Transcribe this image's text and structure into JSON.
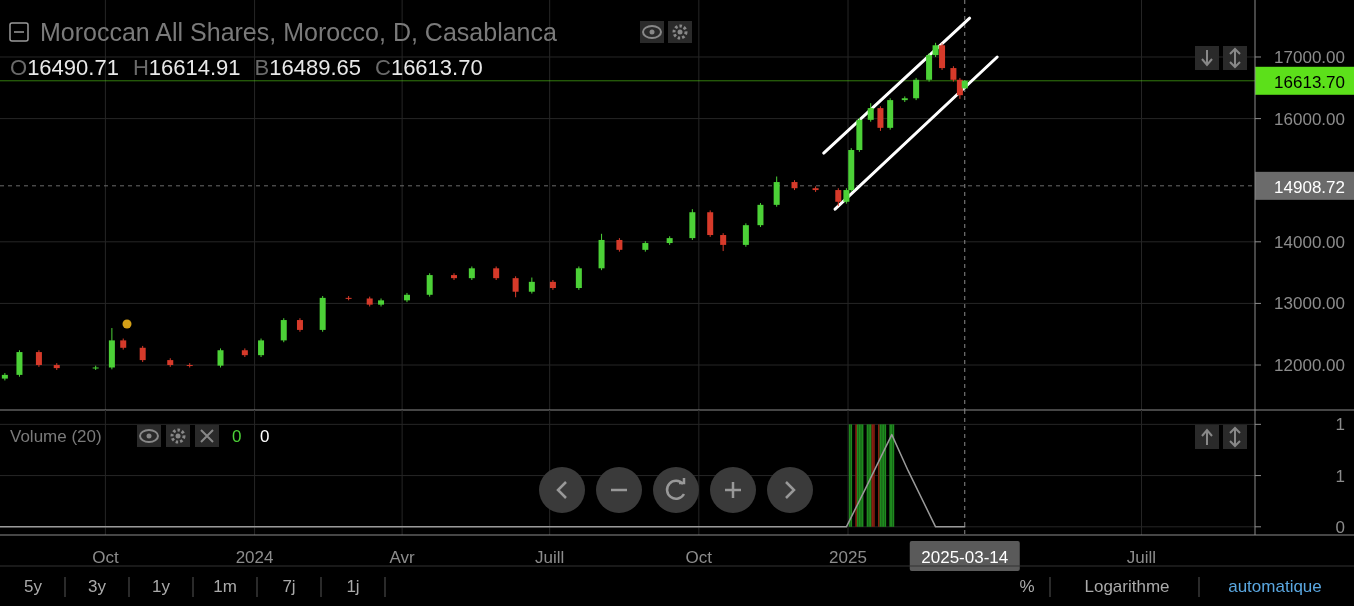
{
  "chart_data": [
    {
      "type": "candlestick",
      "title": "Moroccan All Shares, Morocco, D, Casablanca",
      "subtitle": "O16490.71 H16614.91 B16489.65 C16613.70",
      "grid": true,
      "tick_labels": "y",
      "xlim": [
        "2023-07-28",
        "2025-09-09"
      ],
      "ylim": [
        11270,
        17925
      ],
      "xticks": [
        {
          "value": "2023-10-01",
          "label": null
        },
        {
          "value": "2024-01-01",
          "label": null
        },
        {
          "value": "2024-04-01",
          "label": null
        },
        {
          "value": "2024-07-01",
          "label": null
        },
        {
          "value": "2024-10-01",
          "label": null
        },
        {
          "value": "2025-01-01",
          "label": null
        },
        {
          "value": "2025-07-01",
          "label": null
        }
      ],
      "yticks": [
        {
          "value": 12000,
          "label": "12000.00"
        },
        {
          "value": 13000,
          "label": "13000.00"
        },
        {
          "value": 14000,
          "label": "14000.00"
        },
        {
          "value": 16000,
          "label": "16000.00"
        },
        {
          "value": 17000,
          "label": "17000.00"
        }
      ],
      "x": [
        "2023-07-31",
        "2023-08-09",
        "2023-08-21",
        "2023-09-01",
        "2023-09-25",
        "2023-10-05",
        "2023-10-12",
        "2023-10-24",
        "2023-11-10",
        "2023-11-22",
        "2023-12-11",
        "2023-12-26",
        "2024-01-05",
        "2024-01-19",
        "2024-01-29",
        "2024-02-12",
        "2024-02-28",
        "2024-03-12",
        "2024-03-19",
        "2024-04-04",
        "2024-04-18",
        "2024-05-03",
        "2024-05-14",
        "2024-05-29",
        "2024-06-10",
        "2024-06-20",
        "2024-07-03",
        "2024-07-19",
        "2024-08-02",
        "2024-08-13",
        "2024-08-29",
        "2024-09-13",
        "2024-09-27",
        "2024-10-08",
        "2024-10-16",
        "2024-10-30",
        "2024-11-08",
        "2024-11-18",
        "2024-11-29",
        "2024-12-12",
        "2024-12-26",
        "2024-12-31",
        "2025-01-03",
        "2025-01-08",
        "2025-01-15",
        "2025-01-21",
        "2025-01-27",
        "2025-02-05",
        "2025-02-12",
        "2025-02-20",
        "2025-02-24",
        "2025-02-28",
        "2025-03-07",
        "2025-03-11",
        "2025-03-14"
      ],
      "ohlc": [
        [
          11780,
          11870,
          11750,
          11840
        ],
        [
          11840,
          12240,
          11810,
          12210
        ],
        [
          12210,
          12240,
          11970,
          12000
        ],
        [
          12000,
          12030,
          11920,
          11950
        ],
        [
          11950,
          11990,
          11920,
          11960
        ],
        [
          11960,
          12600,
          11930,
          12400
        ],
        [
          12400,
          12430,
          12250,
          12280
        ],
        [
          12280,
          12310,
          12050,
          12080
        ],
        [
          12080,
          12110,
          11970,
          12000
        ],
        [
          12000,
          12030,
          11960,
          11990
        ],
        [
          11990,
          12270,
          11960,
          12240
        ],
        [
          12240,
          12270,
          12130,
          12160
        ],
        [
          12160,
          12430,
          12130,
          12400
        ],
        [
          12400,
          12760,
          12370,
          12730
        ],
        [
          12730,
          12760,
          12540,
          12570
        ],
        [
          12570,
          13120,
          12540,
          13090
        ],
        [
          13090,
          13120,
          13050,
          13080
        ],
        [
          13080,
          13110,
          12950,
          12980
        ],
        [
          12980,
          13080,
          12950,
          13050
        ],
        [
          13050,
          13170,
          13020,
          13140
        ],
        [
          13140,
          13490,
          13110,
          13460
        ],
        [
          13460,
          13490,
          13380,
          13410
        ],
        [
          13410,
          13600,
          13380,
          13570
        ],
        [
          13570,
          13600,
          13380,
          13410
        ],
        [
          13410,
          13440,
          13100,
          13190
        ],
        [
          13190,
          13420,
          13160,
          13350
        ],
        [
          13350,
          13380,
          13220,
          13250
        ],
        [
          13250,
          13600,
          13220,
          13570
        ],
        [
          13570,
          14130,
          13540,
          14030
        ],
        [
          14030,
          14060,
          13840,
          13870
        ],
        [
          13870,
          14010,
          13840,
          13980
        ],
        [
          13980,
          14090,
          13950,
          14060
        ],
        [
          14060,
          14530,
          14030,
          14480
        ],
        [
          14480,
          14510,
          14080,
          14110
        ],
        [
          14110,
          14140,
          13850,
          13950
        ],
        [
          13950,
          14300,
          13920,
          14270
        ],
        [
          14270,
          14630,
          14240,
          14600
        ],
        [
          14600,
          15060,
          14570,
          14970
        ],
        [
          14970,
          15000,
          14840,
          14870
        ],
        [
          14870,
          14900,
          14810,
          14840
        ],
        [
          14840,
          14870,
          14580,
          14650
        ],
        [
          14650,
          14870,
          14620,
          14840
        ],
        [
          14840,
          15520,
          14810,
          15490
        ],
        [
          15490,
          16010,
          15460,
          15980
        ],
        [
          15980,
          16250,
          15950,
          16170
        ],
        [
          16170,
          16200,
          15800,
          15850
        ],
        [
          15850,
          16330,
          15820,
          16300
        ],
        [
          16300,
          16360,
          16270,
          16330
        ],
        [
          16330,
          16660,
          16300,
          16630
        ],
        [
          16630,
          17060,
          16600,
          17030
        ],
        [
          17030,
          17230,
          17000,
          17190
        ],
        [
          17190,
          17220,
          16790,
          16820
        ],
        [
          16820,
          16850,
          16600,
          16630
        ],
        [
          16630,
          16660,
          16320,
          16380
        ],
        [
          16490.71,
          16614.91,
          16489.65,
          16613.7
        ]
      ],
      "series": [
        {
          "type": "line",
          "color": "#ffffff",
          "x": [
            "2024-12-17",
            "2025-03-17"
          ],
          "values": [
            15440,
            17630
          ]
        },
        {
          "type": "line",
          "color": "#ffffff",
          "x": [
            "2024-12-24",
            "2025-04-03"
          ],
          "values": [
            14530,
            17000
          ]
        }
      ],
      "ref_lines": [
        {
          "axis": "y",
          "value": 16613.7,
          "label": "16613.70",
          "color": "#5ce01a",
          "line_style": "solid"
        },
        {
          "axis": "y",
          "value": 14908.72,
          "label": "14908.72",
          "color": "#6b6b6b",
          "line_style": "dashed"
        },
        {
          "axis": "x",
          "value": "2025-03-14",
          "color": "#8a8a8a",
          "line_style": "dashed"
        }
      ]
    },
    {
      "type": "bar",
      "title": "Volume (20)",
      "grid": true,
      "xlim": [
        "2023-07-28",
        "2025-09-09"
      ],
      "ylim": [
        -0.08,
        1.14
      ],
      "xticks": [
        {
          "value": "2023-10-01",
          "label": "Oct"
        },
        {
          "value": "2024-01-01",
          "label": "2024"
        },
        {
          "value": "2024-04-01",
          "label": "Avr"
        },
        {
          "value": "2024-07-01",
          "label": "Juill"
        },
        {
          "value": "2024-10-01",
          "label": "Oct"
        },
        {
          "value": "2025-01-01",
          "label": "2025"
        },
        {
          "value": "2025-07-01",
          "label": "Juill"
        }
      ],
      "yticks": [
        {
          "value": 0,
          "label": "0"
        },
        {
          "value": 0.5,
          "label": "1"
        },
        {
          "value": 1,
          "label": "1"
        }
      ],
      "series": [
        {
          "type": "bar",
          "x": [
            "2025-01-02",
            "2025-01-03",
            "2025-01-06",
            "2025-01-07",
            "2025-01-08",
            "2025-01-09",
            "2025-01-10",
            "2025-01-13",
            "2025-01-14",
            "2025-01-15",
            "2025-01-16",
            "2025-01-17",
            "2025-01-20",
            "2025-01-21",
            "2025-01-22",
            "2025-01-23",
            "2025-01-24",
            "2025-01-27",
            "2025-01-28",
            "2025-01-29"
          ],
          "values": [
            1,
            1,
            1,
            1,
            1,
            1,
            1,
            1,
            1,
            1,
            1,
            1,
            1,
            1,
            1,
            1,
            1,
            1,
            1,
            1
          ],
          "colors": [
            "#1f8a1f",
            "#1f8a1f",
            "#8a1f12",
            "#1f8a1f",
            "#1f8a1f",
            "#1f8a1f",
            "#1f8a1f",
            "#1f8a1f",
            "#1f8a1f",
            "#1f8a1f",
            "#8a1f12",
            "#8a1f12",
            "#8a1f12",
            "#1f8a1f",
            "#1f8a1f",
            "#1f8a1f",
            "#1f8a1f",
            "#1f8a1f",
            "#1f8a1f",
            "#1f8a1f"
          ]
        },
        {
          "type": "line",
          "color": "#9a9a9a",
          "x": [
            "2023-07-28",
            "2024-12-31",
            "2025-01-12",
            "2025-01-28",
            "2025-02-07",
            "2025-02-24",
            "2025-03-14"
          ],
          "values": [
            0,
            0,
            0.38,
            0.9,
            0.55,
            0,
            0
          ]
        }
      ],
      "ref_lines": [
        {
          "axis": "x",
          "value": "2025-03-14",
          "label": "2025-03-14",
          "color": "#8a8a8a",
          "line_style": "dashed"
        }
      ],
      "annotations": [
        "0",
        "0",
        "5y",
        "3y",
        "1y",
        "1m",
        "7j",
        "1j",
        "%",
        "Logarithme",
        "automatique"
      ]
    }
  ]
}
